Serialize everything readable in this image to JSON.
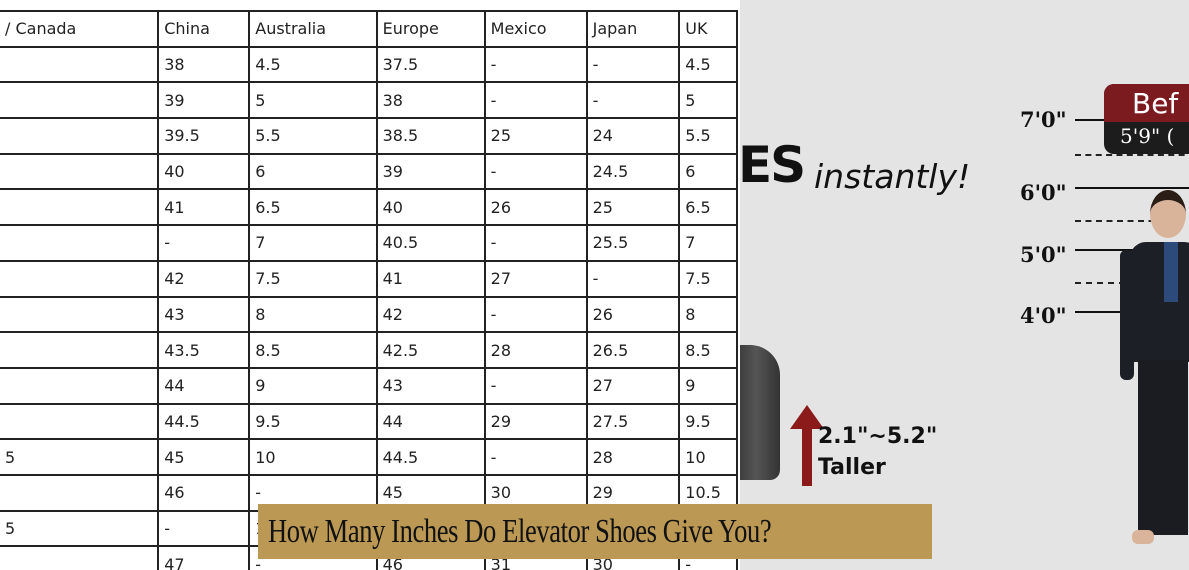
{
  "table": {
    "headers": [
      "/ Canada",
      "China",
      "Australia",
      "Europe",
      "Mexico",
      "Japan",
      "UK"
    ],
    "rows": [
      [
        "",
        "38",
        "4.5",
        "37.5",
        "-",
        "-",
        "4.5"
      ],
      [
        "",
        "39",
        "5",
        "38",
        "-",
        "-",
        "5"
      ],
      [
        "",
        "39.5",
        "5.5",
        "38.5",
        "25",
        "24",
        "5.5"
      ],
      [
        "",
        "40",
        "6",
        "39",
        "-",
        "24.5",
        "6"
      ],
      [
        "",
        "41",
        "6.5",
        "40",
        "26",
        "25",
        "6.5"
      ],
      [
        "",
        "-",
        "7",
        "40.5",
        "-",
        "25.5",
        "7"
      ],
      [
        "",
        "42",
        "7.5",
        "41",
        "27",
        "-",
        "7.5"
      ],
      [
        "",
        "43",
        "8",
        "42",
        "-",
        "26",
        "8"
      ],
      [
        "",
        "43.5",
        "8.5",
        "42.5",
        "28",
        "26.5",
        "8.5"
      ],
      [
        "",
        "44",
        "9",
        "43",
        "-",
        "27",
        "9"
      ],
      [
        "",
        "44.5",
        "9.5",
        "44",
        "29",
        "27.5",
        "9.5"
      ],
      [
        "5",
        "45",
        "10",
        "44.5",
        "-",
        "28",
        "10"
      ],
      [
        "",
        "46",
        "-",
        "45",
        "30",
        "29",
        "10.5"
      ],
      [
        "5",
        "-",
        "1",
        "",
        "",
        "",
        ""
      ],
      [
        "",
        "47",
        "-",
        "46",
        "31",
        "30",
        "-"
      ]
    ]
  },
  "ad": {
    "headline_bold": "ES",
    "headline_italic": "instantly!",
    "lift": "2.1\"~5.2\"",
    "lift_label": "Taller",
    "heights": [
      "7'0\"",
      "6'0\"",
      "5'0\"",
      "4'0\""
    ],
    "bubble_title": "Bef",
    "bubble_sub": "5'9\" (",
    "colors": {
      "bubble": "#7b1a1f",
      "arrow": "#8b1a1a",
      "background": "#e5e4e4"
    }
  },
  "caption": "How Many Inches Do Elevator Shoes Give You?",
  "caption_bg": "#bb9854"
}
